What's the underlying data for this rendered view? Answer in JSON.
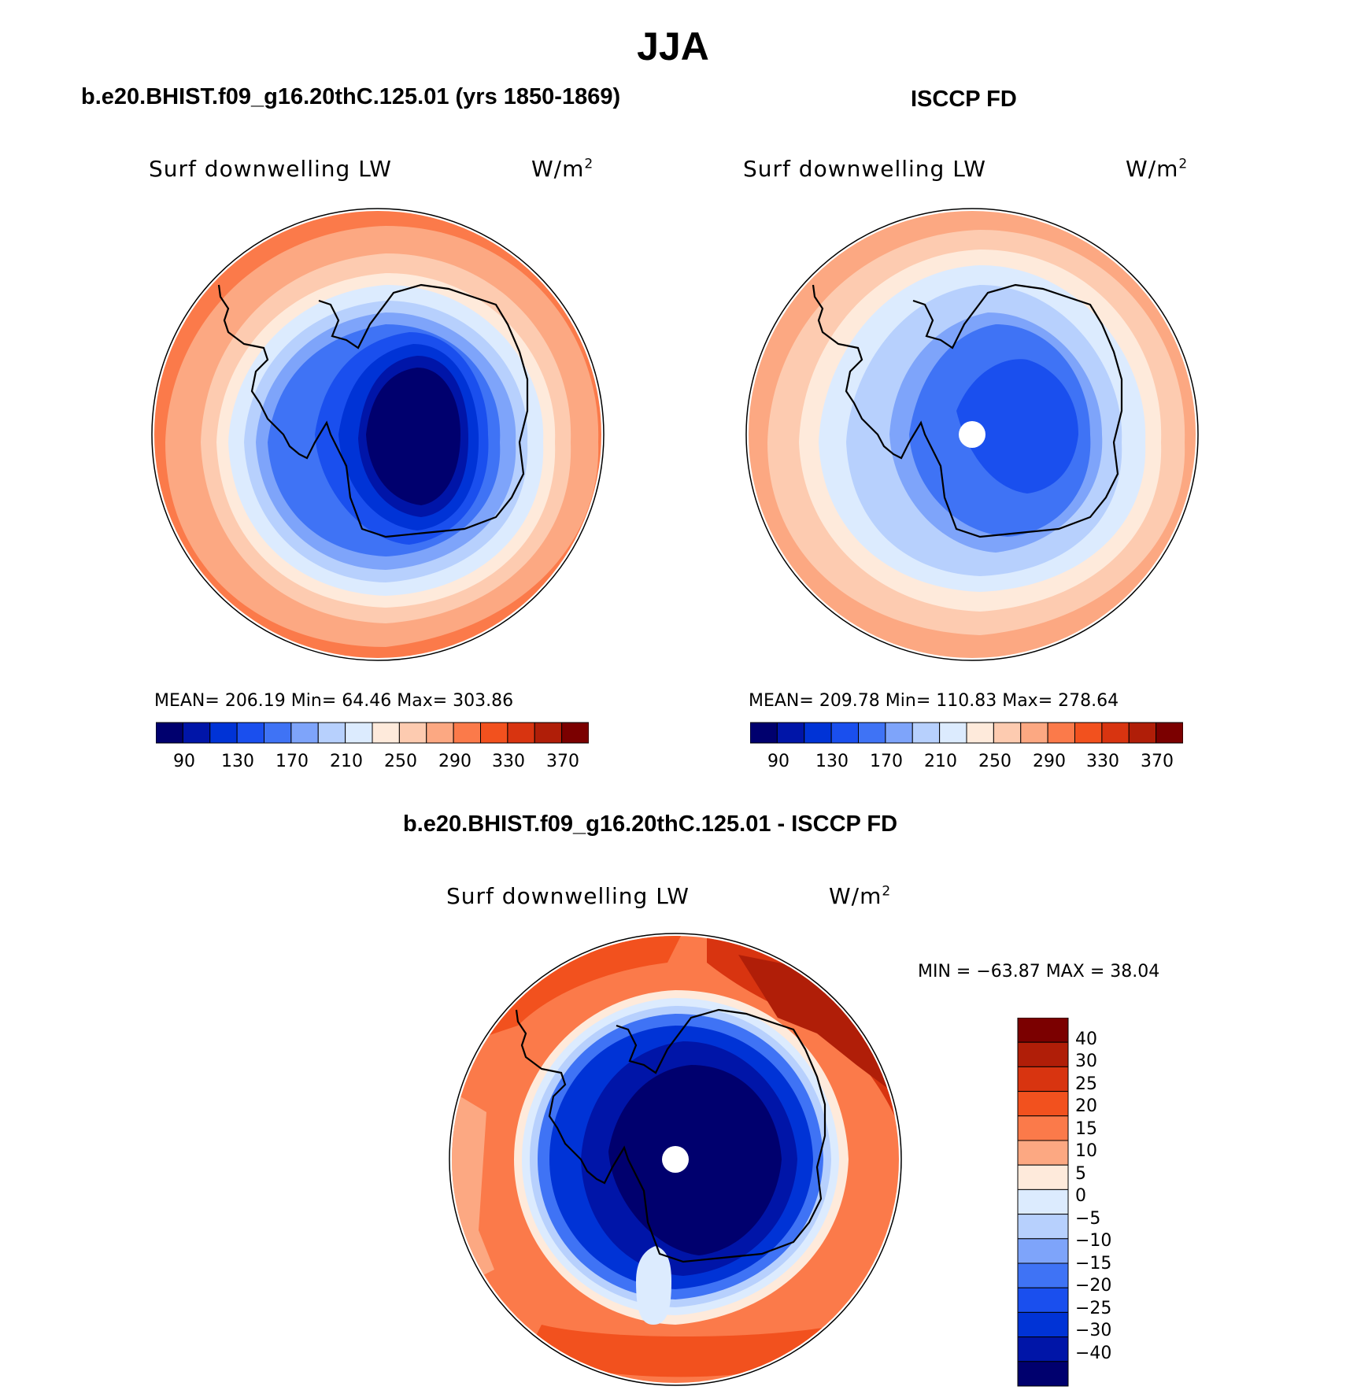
{
  "figure": {
    "title": "JJA"
  },
  "panel_model": {
    "case_title": "b.e20.BHIST.f09_g16.20thC.125.01 (yrs 1850-1869)",
    "field_name": "Surf downwelling LW",
    "units_base": "W/m",
    "units_sup": "2",
    "stats": "MEAN= 206.19  Min=   64.46  Max= 303.86"
  },
  "panel_obs": {
    "case_title": "ISCCP FD",
    "field_name": "Surf downwelling LW",
    "units_base": "W/m",
    "units_sup": "2",
    "stats": "MEAN= 209.78  Min= 110.83  Max= 278.64"
  },
  "panel_diff": {
    "case_title": "b.e20.BHIST.f09_g16.20thC.125.01 - ISCCP FD",
    "field_name": "Surf downwelling LW",
    "units_base": "W/m",
    "units_sup": "2",
    "minmax": "MIN = −63.87 MAX =   38.04"
  },
  "colorbar_abs": {
    "tick_labels": [
      "90",
      "130",
      "170",
      "210",
      "250",
      "290",
      "330",
      "370"
    ],
    "colors": [
      "#00006e",
      "#0015a8",
      "#0033d6",
      "#1a4fee",
      "#3f73f5",
      "#7ea4fa",
      "#b7d0fd",
      "#dcebfe",
      "#feeadb",
      "#fdcbb0",
      "#fca882",
      "#fb7a4a",
      "#f2511e",
      "#d83410",
      "#b01e08",
      "#7b0000"
    ]
  },
  "colorbar_diff": {
    "tick_labels": [
      "40",
      "30",
      "25",
      "20",
      "15",
      "10",
      "5",
      "0",
      "−5",
      "−10",
      "−15",
      "−20",
      "−25",
      "−30",
      "−40"
    ],
    "colors_top_to_bottom": [
      "#7b0000",
      "#b01e08",
      "#d83410",
      "#f2511e",
      "#fb7a4a",
      "#fca882",
      "#feeadb",
      "#dcebfe",
      "#b7d0fd",
      "#7ea4fa",
      "#3f73f5",
      "#1a4fee",
      "#0033d6",
      "#0015a8",
      "#00006e"
    ]
  },
  "colors": {
    "background": "#ffffff",
    "coastline": "#000000",
    "pole_hole": "#ffffff"
  }
}
